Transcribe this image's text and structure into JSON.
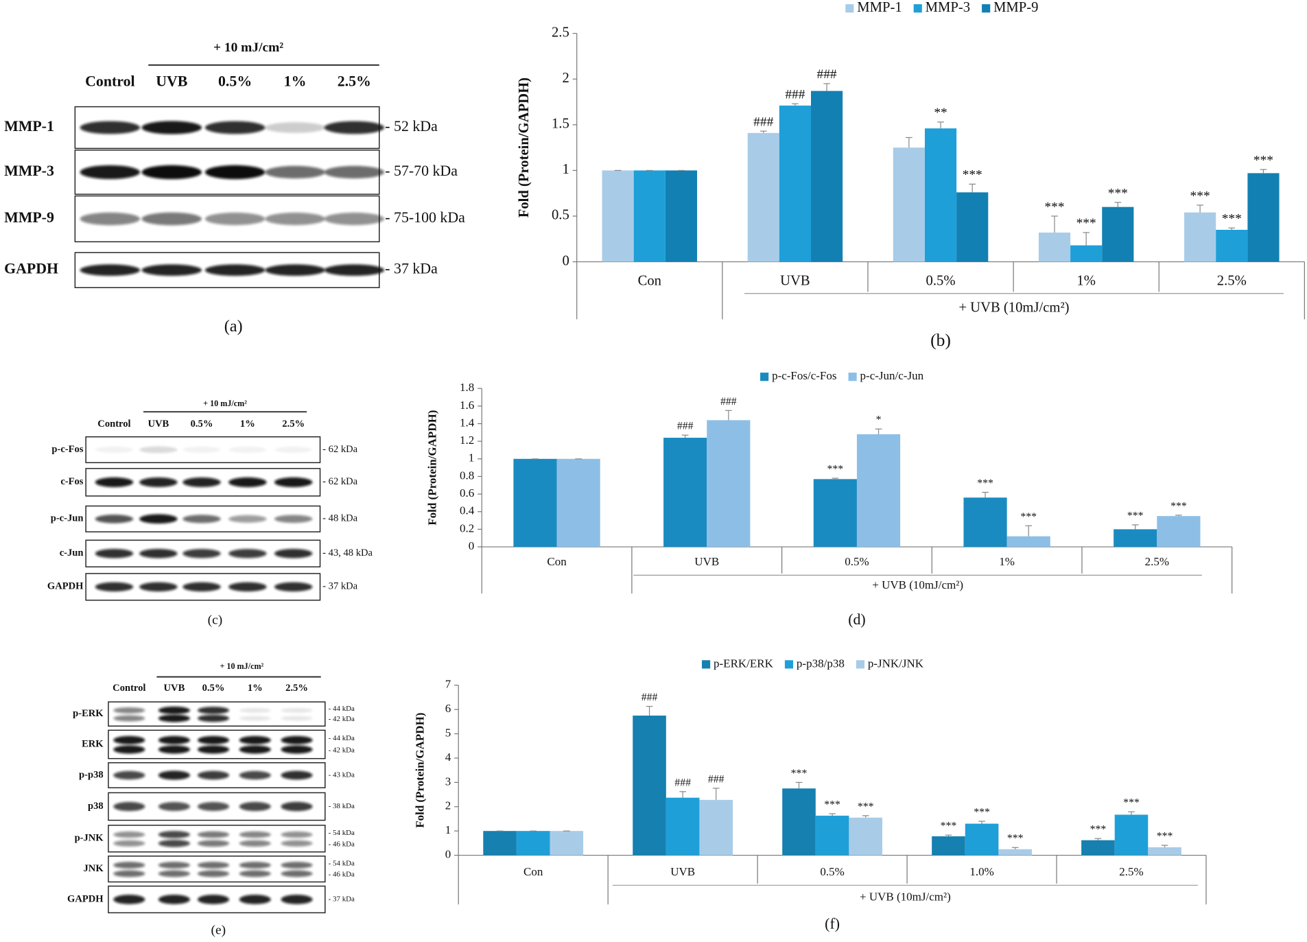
{
  "chart_data": [
    {
      "type": "bar",
      "panel_label": "(b)",
      "ylabel": "Fold (Protein/GAPDH)",
      "categories": [
        "Con",
        "UVB",
        "0.5%",
        "1%",
        "2.5%"
      ],
      "group_label": "+ UVB (10mJ/cm²)",
      "ylim": [
        0,
        2.5
      ],
      "yticks": [
        0,
        0.5,
        1,
        1.5,
        2,
        2.5
      ],
      "series": [
        {
          "name": "MMP-1",
          "color": "#a8cce8",
          "values": [
            1,
            1.41,
            1.25,
            0.32,
            0.54
          ],
          "errors": [
            0,
            0.02,
            0.11,
            0.18,
            0.08
          ],
          "labels": [
            null,
            "###",
            null,
            "***",
            "***"
          ]
        },
        {
          "name": "MMP-3",
          "color": "#1f9fd8",
          "values": [
            1,
            1.71,
            1.46,
            0.18,
            0.35
          ],
          "errors": [
            0,
            0.02,
            0.07,
            0.14,
            0.02
          ],
          "labels": [
            null,
            "###",
            "**",
            "***",
            "***"
          ]
        },
        {
          "name": "MMP-9",
          "color": "#1280b2",
          "values": [
            1,
            1.87,
            0.76,
            0.6,
            0.97
          ],
          "errors": [
            0,
            0.08,
            0.09,
            0.05,
            0.04
          ],
          "labels": [
            null,
            "###",
            "***",
            "***",
            "***"
          ]
        }
      ]
    },
    {
      "type": "bar",
      "panel_label": "(d)",
      "ylabel": "Fold (Protein/GAPDH)",
      "categories": [
        "Con",
        "UVB",
        "0.5%",
        "1%",
        "2.5%"
      ],
      "group_label": "+ UVB (10mJ/cm²)",
      "ylim": [
        0,
        1.8
      ],
      "yticks": [
        0,
        0.2,
        0.4,
        0.6,
        0.8,
        1,
        1.2,
        1.4,
        1.6,
        1.8
      ],
      "series": [
        {
          "name": "p-c-Fos/c-Fos",
          "color": "#1a8bc0",
          "values": [
            1,
            1.24,
            0.77,
            0.56,
            0.2
          ],
          "errors": [
            0,
            0.03,
            0.01,
            0.06,
            0.05
          ],
          "labels": [
            null,
            "###",
            "***",
            "***",
            "***"
          ]
        },
        {
          "name": "p-c-Jun/c-Jun",
          "color": "#8dbfe6",
          "values": [
            1,
            1.44,
            1.28,
            0.12,
            0.35
          ],
          "errors": [
            0,
            0.11,
            0.06,
            0.12,
            0.01
          ],
          "labels": [
            null,
            "###",
            "*",
            "***",
            "***"
          ]
        }
      ]
    },
    {
      "type": "bar",
      "panel_label": "(f)",
      "ylabel": "Fold (Protein/GAPDH)",
      "categories": [
        "Con",
        "UVB",
        "0.5%",
        "1.0%",
        "2.5%"
      ],
      "group_label": "+ UVB (10mJ/cm²)",
      "ylim": [
        0,
        7
      ],
      "yticks": [
        0,
        1,
        2,
        3,
        4,
        5,
        6,
        7
      ],
      "series": [
        {
          "name": "p-ERK/ERK",
          "color": "#1680b0",
          "values": [
            1,
            5.75,
            2.75,
            0.78,
            0.62
          ],
          "errors": [
            0,
            0.38,
            0.25,
            0.05,
            0.07
          ],
          "labels": [
            null,
            "###",
            "***",
            "***",
            "***"
          ]
        },
        {
          "name": "p-p38/p38",
          "color": "#1f9fd8",
          "values": [
            1,
            2.37,
            1.63,
            1.3,
            1.67
          ],
          "errors": [
            0,
            0.25,
            0.08,
            0.1,
            0.12
          ],
          "labels": [
            null,
            "###",
            "***",
            "***",
            "***"
          ]
        },
        {
          "name": "p-JNK/JNK",
          "color": "#a8cce8",
          "values": [
            1,
            2.28,
            1.55,
            0.25,
            0.33
          ],
          "errors": [
            0,
            0.48,
            0.08,
            0.07,
            0.08
          ],
          "labels": [
            null,
            "###",
            "***",
            "***",
            "***"
          ]
        }
      ]
    }
  ],
  "blots": [
    {
      "panel_label": "(a)",
      "header": "+ 10 mJ/cm²",
      "lanes": [
        "Control",
        "UVB",
        "0.5%",
        "1%",
        "2.5%"
      ],
      "rows": [
        {
          "label": "MMP-1",
          "kda": [
            "- 52 kDa"
          ]
        },
        {
          "label": "MMP-3",
          "kda": [
            "- 57-70 kDa"
          ]
        },
        {
          "label": "MMP-9",
          "kda": [
            "- 75-100 kDa"
          ]
        },
        {
          "label": "GAPDH",
          "kda": [
            "- 37 kDa"
          ]
        }
      ]
    },
    {
      "panel_label": "(c)",
      "header": "+ 10 mJ/cm²",
      "lanes": [
        "Control",
        "UVB",
        "0.5%",
        "1%",
        "2.5%"
      ],
      "rows": [
        {
          "label": "p-c-Fos",
          "kda": [
            "- 62 kDa"
          ]
        },
        {
          "label": "c-Fos",
          "kda": [
            "- 62 kDa"
          ]
        },
        {
          "label": "p-c-Jun",
          "kda": [
            "- 48 kDa"
          ]
        },
        {
          "label": "c-Jun",
          "kda": [
            "- 43, 48 kDa"
          ]
        },
        {
          "label": "GAPDH",
          "kda": [
            "- 37 kDa"
          ]
        }
      ]
    },
    {
      "panel_label": "(e)",
      "header": "+ 10 mJ/cm²",
      "lanes": [
        "Control",
        "UVB",
        "0.5%",
        "1%",
        "2.5%"
      ],
      "rows": [
        {
          "label": "p-ERK",
          "kda": [
            "- 44 kDa",
            "- 42 kDa"
          ]
        },
        {
          "label": "ERK",
          "kda": [
            "- 44 kDa",
            "- 42 kDa"
          ]
        },
        {
          "label": "p-p38",
          "kda": [
            "- 43 kDa"
          ]
        },
        {
          "label": "p38",
          "kda": [
            "- 38 kDa"
          ]
        },
        {
          "label": "p-JNK",
          "kda": [
            "- 54 kDa",
            "- 46 kDa"
          ]
        },
        {
          "label": "JNK",
          "kda": [
            "- 54 kDa",
            "- 46 kDa"
          ]
        },
        {
          "label": "GAPDH",
          "kda": [
            "- 37 kDa"
          ]
        }
      ]
    }
  ]
}
